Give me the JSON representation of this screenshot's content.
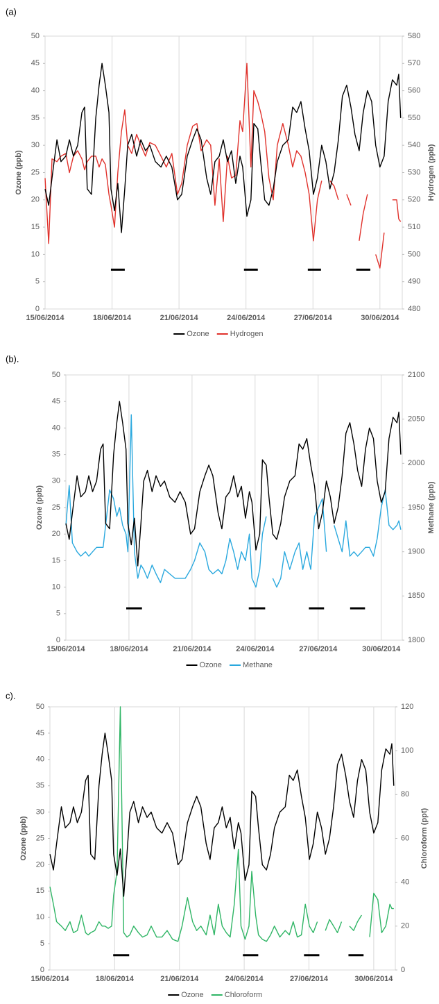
{
  "chart_data": [
    {
      "type": "line",
      "label": "(a)",
      "ylabel": "Ozone (ppb)",
      "y2label": "Hydrogen (ppb)",
      "x": [
        0,
        0.16,
        0.31,
        0.53,
        0.71,
        0.93,
        1.09,
        1.27,
        1.46,
        1.65,
        1.77,
        1.89,
        2.08,
        2.27,
        2.42,
        2.55,
        2.7,
        2.86,
        2.95,
        3.11,
        3.26,
        3.42,
        3.57,
        3.7,
        3.88,
        4.1,
        4.29,
        4.5,
        4.69,
        4.94,
        5.19,
        5.43,
        5.68,
        5.93,
        6.12,
        6.37,
        6.61,
        6.8,
        6.99,
        7.24,
        7.42,
        7.61,
        7.8,
        7.98,
        8.17,
        8.35,
        8.54,
        8.73,
        8.85,
        9.04,
        9.22,
        9.35,
        9.53,
        9.66,
        9.84,
        10.03,
        10.22,
        10.4,
        10.65,
        10.9,
        11.09,
        11.27,
        11.46,
        11.65,
        11.83,
        12.02,
        12.2,
        12.39,
        12.58,
        12.76,
        12.95,
        13.14,
        13.32,
        13.51,
        13.7,
        13.88,
        14.07,
        14.25,
        14.44,
        14.63,
        14.81,
        15.0,
        15.19,
        15.37,
        15.56,
        15.75,
        15.84,
        15.93
      ],
      "series": [
        {
          "name": "Ozone",
          "color": "#000000",
          "values": [
            22,
            19,
            24,
            31,
            27,
            28,
            31,
            28,
            30,
            36,
            37,
            22,
            21,
            35,
            41,
            45,
            41,
            36,
            22,
            18,
            23,
            14,
            22,
            30,
            32,
            28,
            31,
            29,
            30,
            27,
            26,
            28,
            26,
            20,
            21,
            28,
            31,
            33,
            31,
            24,
            21,
            27,
            28,
            31,
            27,
            29,
            23,
            28,
            26,
            17,
            20,
            34,
            33,
            27,
            20,
            19,
            22,
            27,
            30,
            31,
            37,
            36,
            38,
            33,
            29,
            21,
            24,
            30,
            27,
            22,
            25,
            31,
            39,
            41,
            37,
            32,
            29,
            36,
            40,
            38,
            30,
            26,
            28,
            38,
            42,
            41,
            43,
            35
          ]
        },
        {
          "name": "Hydrogen",
          "color": "#e0312b",
          "axis": "y2",
          "values": [
            528,
            504,
            535,
            534,
            536,
            537,
            530,
            536,
            538,
            535,
            531,
            534,
            536,
            536,
            532,
            535,
            533,
            522,
            518,
            510,
            530,
            545,
            553,
            540,
            537,
            544,
            540,
            536,
            541,
            540,
            536,
            532,
            537,
            522,
            526,
            540,
            547,
            548,
            538,
            542,
            540,
            518,
            535,
            512,
            536,
            528,
            529,
            549,
            545,
            570,
            532,
            560,
            556,
            552,
            545,
            528,
            520,
            540,
            548,
            540,
            532,
            538,
            536,
            530,
            522,
            505,
            520,
            527,
            null,
            527,
            525,
            520,
            null,
            522,
            518,
            null,
            505,
            515,
            522,
            null,
            500,
            495,
            508,
            null,
            520,
            520,
            513,
            512
          ]
        }
      ],
      "periods": [
        {
          "x": [
            2.95,
            3.57
          ],
          "y": 7.2
        },
        {
          "x": [
            8.91,
            9.53
          ],
          "y": 7.2
        },
        {
          "x": [
            11.77,
            12.36
          ],
          "y": 7.2
        },
        {
          "x": [
            13.94,
            14.57
          ],
          "y": 7.2
        }
      ],
      "period_color": "#000000",
      "xlim": [
        0,
        16
      ],
      "xticks": [
        {
          "value": 0,
          "label": "15/06/2014"
        },
        {
          "value": 3,
          "label": "18/06/2014"
        },
        {
          "value": 6,
          "label": "21/06/2014"
        },
        {
          "value": 9,
          "label": "24/06/2014"
        },
        {
          "value": 12,
          "label": "27/06/2014"
        },
        {
          "value": 15,
          "label": "30/06/2014"
        }
      ],
      "ylim": [
        0,
        50
      ],
      "yticks": [
        0,
        5,
        10,
        15,
        20,
        25,
        30,
        35,
        40,
        45,
        50
      ],
      "y2lim": [
        480,
        580
      ],
      "y2ticks": [
        480,
        490,
        500,
        510,
        520,
        530,
        540,
        550,
        560,
        570,
        580
      ],
      "grid": "x",
      "legend": "bottom"
    },
    {
      "type": "line",
      "label": "(b).",
      "ylabel": "Ozone (ppb)",
      "y2label": "Methane (ppb)",
      "x": [
        0,
        0.16,
        0.31,
        0.53,
        0.71,
        0.93,
        1.09,
        1.27,
        1.46,
        1.65,
        1.77,
        1.89,
        2.08,
        2.27,
        2.42,
        2.55,
        2.7,
        2.86,
        2.95,
        3.11,
        3.26,
        3.42,
        3.57,
        3.7,
        3.88,
        4.1,
        4.29,
        4.5,
        4.69,
        4.94,
        5.19,
        5.43,
        5.68,
        5.93,
        6.12,
        6.37,
        6.61,
        6.8,
        6.99,
        7.24,
        7.42,
        7.61,
        7.8,
        7.98,
        8.17,
        8.35,
        8.54,
        8.73,
        8.85,
        9.04,
        9.22,
        9.35,
        9.53,
        9.66,
        9.84,
        10.03,
        10.22,
        10.4,
        10.65,
        10.9,
        11.09,
        11.27,
        11.46,
        11.65,
        11.83,
        12.02,
        12.2,
        12.39,
        12.58,
        12.76,
        12.95,
        13.14,
        13.32,
        13.51,
        13.7,
        13.88,
        14.07,
        14.25,
        14.44,
        14.63,
        14.81,
        15.0,
        15.19,
        15.37,
        15.56,
        15.75,
        15.84,
        15.93
      ],
      "series": [
        {
          "name": "Ozone",
          "color": "#000000",
          "values": [
            22,
            19,
            24,
            31,
            27,
            28,
            31,
            28,
            30,
            36,
            37,
            22,
            21,
            35,
            41,
            45,
            41,
            36,
            22,
            18,
            23,
            14,
            22,
            30,
            32,
            28,
            31,
            29,
            30,
            27,
            26,
            28,
            26,
            20,
            21,
            28,
            31,
            33,
            31,
            24,
            21,
            27,
            28,
            31,
            27,
            29,
            23,
            28,
            26,
            17,
            20,
            34,
            33,
            27,
            20,
            19,
            22,
            27,
            30,
            31,
            37,
            36,
            38,
            33,
            29,
            21,
            24,
            30,
            27,
            22,
            25,
            31,
            39,
            41,
            37,
            32,
            29,
            36,
            40,
            38,
            30,
            26,
            28,
            38,
            42,
            41,
            43,
            35
          ]
        },
        {
          "name": "Methane",
          "color": "#29a8de",
          "axis": "y2",
          "values": [
            1930,
            1975,
            1910,
            1900,
            1895,
            1900,
            1895,
            1900,
            1905,
            1905,
            1905,
            1930,
            1970,
            1960,
            1940,
            1950,
            1930,
            1920,
            1900,
            2055,
            1900,
            1870,
            1885,
            1880,
            1870,
            1885,
            1875,
            1865,
            1880,
            1875,
            1870,
            1870,
            1870,
            1880,
            1890,
            1910,
            1900,
            1880,
            1875,
            1880,
            1875,
            1890,
            1915,
            1900,
            1880,
            1900,
            1890,
            1920,
            1870,
            1860,
            1880,
            1920,
            1940,
            null,
            1870,
            1860,
            1870,
            1900,
            1880,
            1900,
            1910,
            1880,
            1900,
            1880,
            1940,
            1950,
            1960,
            1900,
            null,
            1930,
            1915,
            1900,
            1935,
            1895,
            1900,
            1895,
            1900,
            1905,
            1905,
            1895,
            1915,
            1950,
            1970,
            1930,
            1925,
            1930,
            1935,
            1925
          ]
        }
      ],
      "periods": [
        {
          "x": [
            2.87,
            3.62
          ],
          "y": 6
        },
        {
          "x": [
            8.7,
            9.48
          ],
          "y": 6
        },
        {
          "x": [
            11.56,
            12.28
          ],
          "y": 6
        },
        {
          "x": [
            13.52,
            14.23
          ],
          "y": 6
        }
      ],
      "period_color": "#000000",
      "xlim": [
        0,
        16
      ],
      "xticks": [
        {
          "value": 0,
          "label": "15/06/2014"
        },
        {
          "value": 3,
          "label": "18/06/2014"
        },
        {
          "value": 6,
          "label": "21/06/2014"
        },
        {
          "value": 9,
          "label": "24/06/2014"
        },
        {
          "value": 12,
          "label": "27/06/2014"
        },
        {
          "value": 15,
          "label": "30/06/2014"
        }
      ],
      "ylim": [
        0,
        50
      ],
      "yticks": [
        0,
        5,
        10,
        15,
        20,
        25,
        30,
        35,
        40,
        45,
        50
      ],
      "y2lim": [
        1800,
        2100
      ],
      "y2ticks": [
        1800,
        1850,
        1900,
        1950,
        2000,
        2050,
        2100
      ],
      "grid": "x",
      "legend": "bottom"
    },
    {
      "type": "line",
      "label": "c).",
      "ylabel": "Ozone (ppb)",
      "y2label": "Chloroform (ppt)",
      "x": [
        0,
        0.16,
        0.31,
        0.53,
        0.71,
        0.93,
        1.09,
        1.27,
        1.46,
        1.65,
        1.77,
        1.89,
        2.08,
        2.27,
        2.42,
        2.55,
        2.7,
        2.86,
        2.95,
        3.11,
        3.26,
        3.42,
        3.57,
        3.7,
        3.88,
        4.1,
        4.29,
        4.5,
        4.69,
        4.94,
        5.19,
        5.43,
        5.68,
        5.93,
        6.12,
        6.37,
        6.61,
        6.8,
        6.99,
        7.24,
        7.42,
        7.61,
        7.8,
        7.98,
        8.17,
        8.35,
        8.54,
        8.73,
        8.85,
        9.04,
        9.22,
        9.35,
        9.53,
        9.66,
        9.84,
        10.03,
        10.22,
        10.4,
        10.65,
        10.9,
        11.09,
        11.27,
        11.46,
        11.65,
        11.83,
        12.02,
        12.2,
        12.39,
        12.58,
        12.76,
        12.95,
        13.14,
        13.32,
        13.51,
        13.7,
        13.88,
        14.07,
        14.25,
        14.44,
        14.63,
        14.81,
        15.0,
        15.19,
        15.37,
        15.56,
        15.75,
        15.84,
        15.93
      ],
      "series": [
        {
          "name": "Ozone",
          "color": "#000000",
          "values": [
            22,
            19,
            24,
            31,
            27,
            28,
            31,
            28,
            30,
            36,
            37,
            22,
            21,
            35,
            41,
            45,
            41,
            36,
            22,
            18,
            23,
            14,
            22,
            30,
            32,
            28,
            31,
            29,
            30,
            27,
            26,
            28,
            26,
            20,
            21,
            28,
            31,
            33,
            31,
            24,
            21,
            27,
            28,
            31,
            27,
            29,
            23,
            28,
            26,
            17,
            20,
            34,
            33,
            27,
            20,
            19,
            22,
            27,
            30,
            31,
            37,
            36,
            38,
            33,
            29,
            21,
            24,
            30,
            27,
            22,
            25,
            31,
            39,
            41,
            37,
            32,
            29,
            36,
            40,
            38,
            30,
            26,
            28,
            38,
            42,
            41,
            43,
            35
          ]
        },
        {
          "name": "Chloroform",
          "color": "#2fb565",
          "axis": "y2",
          "values": [
            38,
            30,
            22,
            20,
            18,
            22,
            17,
            18,
            25,
            17,
            16,
            17,
            18,
            22,
            20,
            20,
            19,
            20,
            34,
            45,
            120,
            17,
            15,
            16,
            20,
            17,
            15,
            16,
            20,
            15,
            15,
            18,
            14,
            13,
            20,
            33,
            22,
            18,
            20,
            16,
            25,
            16,
            30,
            20,
            17,
            15,
            30,
            55,
            20,
            14,
            20,
            45,
            25,
            16,
            14,
            13,
            16,
            20,
            15,
            18,
            16,
            22,
            15,
            16,
            30,
            20,
            17,
            22,
            null,
            18,
            23,
            20,
            17,
            22,
            null,
            20,
            18,
            22,
            25,
            null,
            15,
            35,
            32,
            17,
            20,
            30,
            28,
            28
          ]
        }
      ],
      "periods": [
        {
          "x": [
            2.93,
            3.67
          ],
          "y": 2.8
        },
        {
          "x": [
            8.94,
            9.65
          ],
          "y": 2.8
        },
        {
          "x": [
            11.77,
            12.48
          ],
          "y": 2.8
        },
        {
          "x": [
            13.83,
            14.53
          ],
          "y": 2.8
        }
      ],
      "period_color": "#000000",
      "xlim": [
        0,
        16
      ],
      "xticks": [
        {
          "value": 0,
          "label": "15/06/2014"
        },
        {
          "value": 3,
          "label": "18/06/2014"
        },
        {
          "value": 6,
          "label": "21/06/2014"
        },
        {
          "value": 9,
          "label": "24/06/2014"
        },
        {
          "value": 12,
          "label": "27/06/2014"
        },
        {
          "value": 15,
          "label": "30/06/2014"
        }
      ],
      "ylim": [
        0,
        50
      ],
      "yticks": [
        0,
        5,
        10,
        15,
        20,
        25,
        30,
        35,
        40,
        45,
        50
      ],
      "y2lim": [
        0,
        120
      ],
      "y2ticks": [
        0,
        20,
        40,
        60,
        80,
        100,
        120
      ],
      "grid": "x",
      "legend": "bottom"
    }
  ]
}
